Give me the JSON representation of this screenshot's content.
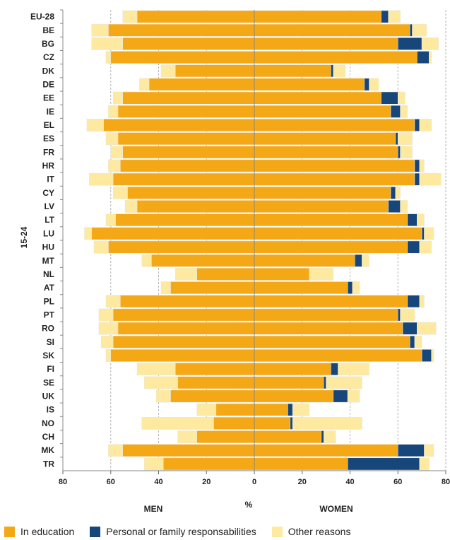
{
  "chart_data": {
    "type": "bar",
    "orientation": "horizontal-diverging",
    "ylabel": "15-24",
    "xlabel": "%",
    "xlim": [
      -80,
      80
    ],
    "xticks": [
      "80",
      "60",
      "40",
      "20",
      "0",
      "20",
      "40",
      "60",
      "80"
    ],
    "left_label": "MEN",
    "right_label": "WOMEN",
    "grid": "vertical dashed",
    "legend_position": "bottom",
    "categories": [
      "EU-28",
      "BE",
      "BG",
      "CZ",
      "DK",
      "DE",
      "EE",
      "IE",
      "EL",
      "ES",
      "FR",
      "HR",
      "IT",
      "CY",
      "LV",
      "LT",
      "LU",
      "HU",
      "MT",
      "NL",
      "AT",
      "PL",
      "PT",
      "RO",
      "SI",
      "SK",
      "FI",
      "SE",
      "UK",
      "IS",
      "NO",
      "CH",
      "MK",
      "TR"
    ],
    "series": [
      {
        "name": "In education",
        "color": "#f5a815",
        "men": [
          49,
          61,
          55,
          60,
          33,
          44,
          55,
          57,
          63,
          57,
          55,
          56,
          59,
          53,
          49,
          58,
          68,
          61,
          43,
          24,
          35,
          56,
          59,
          57,
          59,
          60,
          33,
          32,
          35,
          16,
          17,
          24,
          55,
          38
        ],
        "women": [
          53,
          65,
          60,
          68,
          32,
          46,
          53,
          57,
          67,
          59,
          60,
          67,
          67,
          57,
          56,
          64,
          70,
          64,
          42,
          23,
          39,
          64,
          60,
          62,
          65,
          70,
          32,
          29,
          33,
          14,
          15,
          28,
          60,
          39
        ]
      },
      {
        "name": "Personal or family responsabilities",
        "color": "#17477a",
        "men": [
          0,
          0,
          0,
          0,
          0,
          0,
          0,
          0,
          0,
          0,
          0,
          0,
          0,
          0,
          0,
          0,
          0,
          0,
          0,
          0,
          0,
          0,
          0,
          0,
          0,
          0,
          0,
          0,
          0,
          0,
          0,
          0,
          0,
          0
        ],
        "women": [
          3,
          1,
          10,
          5,
          1,
          2,
          7,
          4,
          2,
          1,
          1,
          2,
          2,
          2,
          5,
          4,
          1,
          5,
          3,
          0,
          2,
          5,
          1,
          6,
          2,
          4,
          3,
          1,
          6,
          2,
          1,
          1,
          11,
          30
        ]
      },
      {
        "name": "Other reasons",
        "color": "#fdeaa0",
        "men": [
          6,
          7,
          13,
          2,
          6,
          4,
          4,
          4,
          7,
          5,
          5,
          5,
          10,
          6,
          5,
          4,
          3,
          6,
          4,
          9,
          4,
          6,
          6,
          8,
          5,
          2,
          16,
          14,
          6,
          8,
          30,
          8,
          6,
          8
        ],
        "women": [
          5,
          6,
          7,
          1,
          5,
          4,
          3,
          3,
          5,
          6,
          5,
          2,
          9,
          2,
          3,
          3,
          4,
          5,
          3,
          10,
          3,
          2,
          6,
          8,
          3,
          1,
          13,
          15,
          5,
          7,
          29,
          5,
          4,
          4
        ]
      }
    ]
  }
}
